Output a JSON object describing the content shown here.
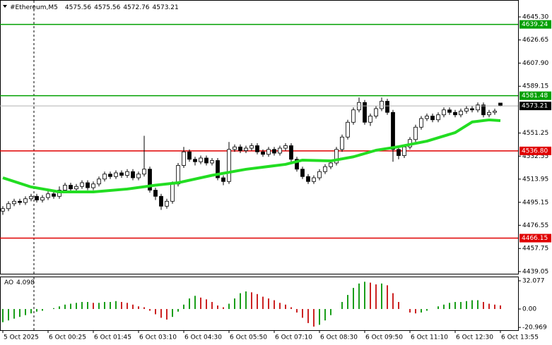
{
  "chart_data": {
    "type": "candlestick",
    "title": "#Ethereum,M5",
    "bull_color": "#ffffff",
    "bear_color": "#000000",
    "x": [
      0,
      1,
      2,
      3,
      4,
      5,
      6,
      7,
      8,
      9,
      10,
      11,
      12,
      13,
      14,
      15,
      16,
      17,
      18,
      19,
      20,
      21,
      22,
      23,
      24,
      25,
      26,
      27,
      28,
      29,
      30,
      31,
      32,
      33,
      34,
      35,
      36,
      37,
      38,
      39,
      40,
      41,
      42,
      43,
      44,
      45,
      46,
      47,
      48,
      49,
      50,
      51,
      52,
      53,
      54,
      55,
      56,
      57,
      58,
      59,
      60,
      61,
      62,
      63,
      64,
      65,
      66,
      67,
      68,
      69,
      70,
      71,
      72,
      73,
      74,
      75,
      76,
      77,
      78,
      79,
      80,
      81,
      82,
      83,
      84,
      85,
      86,
      87,
      88
    ],
    "open": [
      4488,
      4490,
      4494,
      4496,
      4495,
      4498,
      4500,
      4497,
      4499,
      4502,
      4500,
      4505,
      4509,
      4506,
      4508,
      4511,
      4507,
      4510,
      4514,
      4518,
      4516,
      4519,
      4517,
      4520,
      4515,
      4518,
      4522,
      4505,
      4500,
      4492,
      4496,
      4510,
      4525,
      4536,
      4530,
      4528,
      4531,
      4527,
      4529,
      4515,
      4512,
      4538,
      4540,
      4537,
      4539,
      4541,
      4536,
      4534,
      4538,
      4535,
      4539,
      4541,
      4530,
      4522,
      4516,
      4512,
      4515,
      4520,
      4524,
      4527,
      4538,
      4548,
      4560,
      4570,
      4576,
      4560,
      4565,
      4571,
      4577,
      4568,
      4538,
      4533,
      4540,
      4546,
      4556,
      4563,
      4565,
      4562,
      4566,
      4570,
      4568,
      4566,
      4569,
      4571,
      4570,
      4574,
      4566,
      4568,
      4575.56
    ],
    "high": [
      4492,
      4496,
      4498,
      4498,
      4500,
      4502,
      4502,
      4501,
      4504,
      4504,
      4508,
      4511,
      4511,
      4510,
      4513,
      4513,
      4512,
      4516,
      4520,
      4520,
      4521,
      4521,
      4522,
      4522,
      4520,
      4549,
      4524,
      4507,
      4502,
      4498,
      4512,
      4527,
      4540,
      4538,
      4532,
      4533,
      4533,
      4531,
      4531,
      4517,
      4544,
      4542,
      4542,
      4541,
      4543,
      4543,
      4538,
      4540,
      4540,
      4541,
      4543,
      4543,
      4532,
      4524,
      4518,
      4517,
      4522,
      4526,
      4529,
      4540,
      4550,
      4562,
      4572,
      4580,
      4578,
      4567,
      4573,
      4580,
      4579,
      4570,
      4540,
      4542,
      4548,
      4558,
      4565,
      4567,
      4567,
      4568,
      4572,
      4572,
      4570,
      4571,
      4573,
      4573,
      4576,
      4576,
      4570,
      4571,
      4575.56
    ],
    "low": [
      4485,
      4488,
      4492,
      4493,
      4493,
      4496,
      4495,
      4495,
      4497,
      4498,
      4498,
      4503,
      4504,
      4504,
      4506,
      4505,
      4505,
      4508,
      4512,
      4514,
      4514,
      4515,
      4515,
      4513,
      4513,
      4516,
      4503,
      4497,
      4489,
      4490,
      4494,
      4508,
      4523,
      4528,
      4525,
      4526,
      4525,
      4525,
      4513,
      4509,
      4510,
      4536,
      4535,
      4535,
      4537,
      4534,
      4532,
      4532,
      4533,
      4533,
      4537,
      4528,
      4520,
      4514,
      4510,
      4510,
      4513,
      4518,
      4522,
      4525,
      4536,
      4546,
      4558,
      4568,
      4558,
      4557,
      4563,
      4569,
      4566,
      4528,
      4530,
      4531,
      4538,
      4544,
      4554,
      4561,
      4560,
      4560,
      4564,
      4566,
      4564,
      4564,
      4567,
      4568,
      4568,
      4564,
      4564,
      4566,
      4572.76
    ],
    "close": [
      4490,
      4494,
      4496,
      4495,
      4498,
      4500,
      4497,
      4499,
      4502,
      4500,
      4505,
      4509,
      4506,
      4508,
      4511,
      4507,
      4510,
      4514,
      4518,
      4516,
      4519,
      4517,
      4520,
      4515,
      4518,
      4522,
      4505,
      4500,
      4492,
      4496,
      4510,
      4525,
      4536,
      4530,
      4528,
      4531,
      4527,
      4529,
      4515,
      4512,
      4538,
      4540,
      4537,
      4539,
      4541,
      4536,
      4534,
      4538,
      4535,
      4539,
      4541,
      4530,
      4522,
      4516,
      4512,
      4515,
      4520,
      4524,
      4527,
      4538,
      4548,
      4560,
      4570,
      4576,
      4560,
      4565,
      4571,
      4577,
      4568,
      4538,
      4533,
      4540,
      4546,
      4556,
      4563,
      4565,
      4562,
      4566,
      4570,
      4568,
      4566,
      4569,
      4571,
      4570,
      4574,
      4566,
      4568,
      4569,
      4573.21
    ],
    "xlim": [
      -0.5,
      91.125
    ],
    "xticks": [
      {
        "value": 0,
        "label": "5 Oct 2025"
      },
      {
        "value": 8,
        "label": "6 Oct 00:25"
      },
      {
        "value": 16,
        "label": "6 Oct 01:45"
      },
      {
        "value": 24,
        "label": "6 Oct 03:10"
      },
      {
        "value": 32,
        "label": "6 Oct 04:30"
      },
      {
        "value": 40,
        "label": "6 Oct 05:50"
      },
      {
        "value": 48,
        "label": "6 Oct 07:10"
      },
      {
        "value": 56,
        "label": "6 Oct 08:30"
      },
      {
        "value": 64,
        "label": "6 Oct 09:50"
      },
      {
        "value": 72,
        "label": "6 Oct 11:10"
      },
      {
        "value": 80,
        "label": "6 Oct 12:30"
      },
      {
        "value": 88,
        "label": "6 Oct 13:55"
      }
    ],
    "ylim": [
      4437.3,
      4659.0
    ],
    "yticks": [
      {
        "value": 4645.3,
        "label": "4645.30"
      },
      4626.65,
      {
        "value": 4607.9,
        "label": "4607.90"
      },
      4589.15,
      4551.25,
      4532.55,
      4513.95,
      4495.15,
      4476.55,
      4457.75,
      4439.05
    ],
    "levels": [
      {
        "value": 4639.24,
        "label": "4639.24",
        "color": "#00a000"
      },
      {
        "value": 4581.48,
        "label": "4581.48",
        "color": "#00a000"
      },
      {
        "value": 4536.8,
        "label": "4536.80",
        "color": "#e00000"
      },
      {
        "value": 4466.15,
        "label": "4466.15",
        "color": "#e00000"
      }
    ],
    "ma": {
      "color": "#22dd22",
      "x": [
        0,
        5,
        10,
        16,
        22,
        27,
        31,
        37,
        43,
        50,
        53,
        58,
        62,
        66,
        70,
        75,
        80,
        83,
        86,
        88
      ],
      "values": [
        4515,
        4507.6,
        4503.6,
        4503.6,
        4505.9,
        4509,
        4511,
        4517,
        4521.9,
        4525.9,
        4529.3,
        4528.7,
        4532,
        4537.3,
        4540.2,
        4544.7,
        4551.6,
        4560.2,
        4561.9,
        4561.3
      ]
    },
    "ao": {
      "name": "AO",
      "up_color": "#1a9e1a",
      "down_color": "#cc2222",
      "values": [
        -15,
        -13,
        -11,
        -9,
        -7,
        -5,
        -3,
        -2,
        0,
        1,
        3,
        5,
        6,
        7,
        8,
        8,
        7,
        7,
        8,
        8,
        9,
        8,
        7,
        5,
        3,
        2,
        -2,
        -6,
        -10,
        -12,
        -9,
        -3,
        5,
        12,
        15,
        13,
        11,
        8,
        4,
        2,
        6,
        12,
        18,
        20,
        19,
        17,
        14,
        12,
        10,
        7,
        5,
        2,
        -4,
        -10,
        -16,
        -20,
        -18,
        -13,
        -7,
        0,
        8,
        16,
        24,
        29,
        31,
        30,
        28,
        29,
        27,
        18,
        8,
        0,
        -4,
        -5,
        -4,
        -2,
        0,
        3,
        5,
        7,
        8,
        8,
        9,
        10,
        10,
        8,
        6,
        5,
        4.098
      ],
      "ylim": [
        -24.1,
        36.9
      ],
      "yticks": [
        32.077,
        {
          "value": 0,
          "label": "0.00"
        },
        -20.969
      ]
    }
  }
}
